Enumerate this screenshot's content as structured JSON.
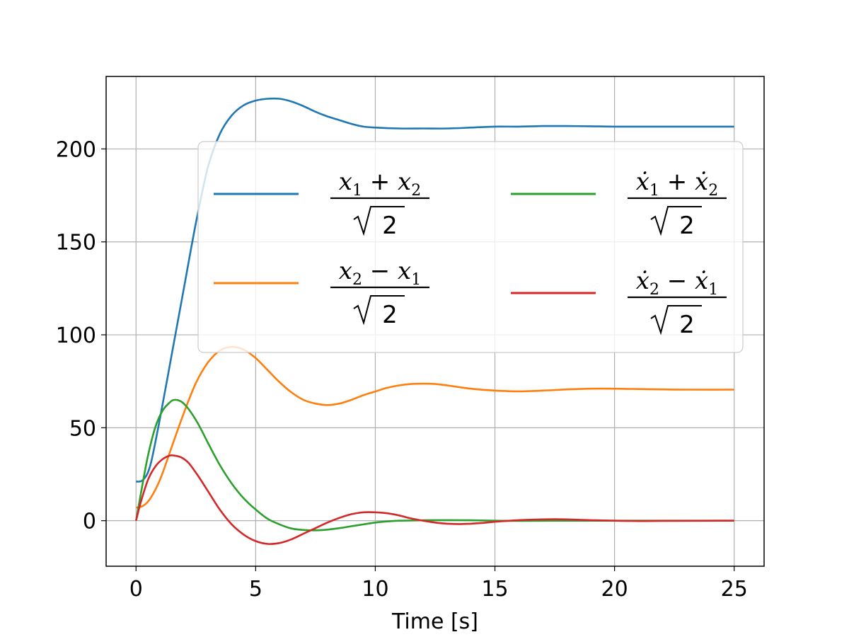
{
  "chart_data": {
    "type": "line",
    "title": "",
    "xlabel": "Time [s]",
    "ylabel": "",
    "xlim": [
      -1.25,
      26.25
    ],
    "ylim": [
      -24.5,
      239
    ],
    "xticks": [
      0,
      5,
      10,
      15,
      20,
      25
    ],
    "yticks": [
      0,
      50,
      100,
      150,
      200
    ],
    "grid": true,
    "legend_position": "upper center",
    "legend_columns": 2,
    "series": [
      {
        "name": "(x1 + x2)/√2",
        "color": "#1f77b4",
        "points": [
          [
            0,
            21
          ],
          [
            0.3,
            22
          ],
          [
            0.6,
            30
          ],
          [
            1.0,
            55
          ],
          [
            1.5,
            90
          ],
          [
            2.0,
            125
          ],
          [
            2.5,
            160
          ],
          [
            3.0,
            190
          ],
          [
            3.5,
            208
          ],
          [
            4.0,
            218
          ],
          [
            4.5,
            223.5
          ],
          [
            5.0,
            226
          ],
          [
            5.5,
            227
          ],
          [
            6.0,
            227
          ],
          [
            6.5,
            225.5
          ],
          [
            7.0,
            223
          ],
          [
            7.5,
            220
          ],
          [
            8.0,
            217.5
          ],
          [
            8.5,
            215.5
          ],
          [
            9.0,
            213.5
          ],
          [
            9.5,
            212
          ],
          [
            10.0,
            211.5
          ],
          [
            11.0,
            211
          ],
          [
            12.0,
            211
          ],
          [
            13.0,
            211
          ],
          [
            14.0,
            211.5
          ],
          [
            15.0,
            212
          ],
          [
            16.0,
            212
          ],
          [
            17.0,
            212.3
          ],
          [
            18.0,
            212.3
          ],
          [
            19.0,
            212.2
          ],
          [
            20.0,
            212
          ],
          [
            22.0,
            212
          ],
          [
            25.0,
            212
          ]
        ]
      },
      {
        "name": "(x2 − x1)/√2",
        "color": "#ff7f0e",
        "points": [
          [
            0,
            7
          ],
          [
            0.3,
            8
          ],
          [
            0.6,
            12
          ],
          [
            1.0,
            22
          ],
          [
            1.5,
            40
          ],
          [
            2.0,
            58
          ],
          [
            2.5,
            74
          ],
          [
            3.0,
            85
          ],
          [
            3.5,
            91.5
          ],
          [
            4.0,
            93.5
          ],
          [
            4.5,
            92
          ],
          [
            5.0,
            87.5
          ],
          [
            5.5,
            81
          ],
          [
            6.0,
            74.5
          ],
          [
            6.5,
            69
          ],
          [
            7.0,
            65
          ],
          [
            7.5,
            63
          ],
          [
            8.0,
            62.2
          ],
          [
            8.5,
            63
          ],
          [
            9.0,
            65
          ],
          [
            9.5,
            67.5
          ],
          [
            10.0,
            69.5
          ],
          [
            10.5,
            71.5
          ],
          [
            11.0,
            72.8
          ],
          [
            11.5,
            73.5
          ],
          [
            12.0,
            73.7
          ],
          [
            12.5,
            73.5
          ],
          [
            13.0,
            72.8
          ],
          [
            14.0,
            71
          ],
          [
            15.0,
            70
          ],
          [
            16.0,
            69.6
          ],
          [
            17.0,
            70
          ],
          [
            18.0,
            70.6
          ],
          [
            19.0,
            71
          ],
          [
            20.0,
            71
          ],
          [
            21.0,
            70.8
          ],
          [
            22.0,
            70.6
          ],
          [
            23.0,
            70.5
          ],
          [
            25.0,
            70.5
          ]
        ]
      },
      {
        "name": "(ẋ1 + ẋ2)/√2",
        "color": "#2ca02c",
        "points": [
          [
            0,
            0
          ],
          [
            0.25,
            18
          ],
          [
            0.5,
            35
          ],
          [
            0.8,
            50
          ],
          [
            1.1,
            59
          ],
          [
            1.4,
            63.5
          ],
          [
            1.6,
            65
          ],
          [
            1.9,
            64
          ],
          [
            2.2,
            60
          ],
          [
            2.6,
            52
          ],
          [
            3.0,
            42
          ],
          [
            3.5,
            30
          ],
          [
            4.0,
            20
          ],
          [
            4.5,
            12
          ],
          [
            5.0,
            6
          ],
          [
            5.5,
            1
          ],
          [
            6.0,
            -2
          ],
          [
            6.5,
            -4.2
          ],
          [
            7.0,
            -5
          ],
          [
            7.5,
            -5.2
          ],
          [
            8.0,
            -4.8
          ],
          [
            8.5,
            -4
          ],
          [
            9.0,
            -3
          ],
          [
            9.5,
            -2
          ],
          [
            10.0,
            -1
          ],
          [
            10.5,
            -0.4
          ],
          [
            11.0,
            0
          ],
          [
            12.0,
            0.2
          ],
          [
            13.0,
            0.3
          ],
          [
            14.0,
            0.2
          ],
          [
            15.0,
            0
          ],
          [
            16.0,
            -0.1
          ],
          [
            18.0,
            0
          ],
          [
            20.0,
            0
          ],
          [
            25.0,
            0
          ]
        ]
      },
      {
        "name": "(ẋ2 − ẋ1)/√2",
        "color": "#d62728",
        "points": [
          [
            0,
            0
          ],
          [
            0.2,
            10
          ],
          [
            0.5,
            22
          ],
          [
            0.8,
            29
          ],
          [
            1.1,
            33
          ],
          [
            1.4,
            35
          ],
          [
            1.6,
            35
          ],
          [
            1.9,
            34
          ],
          [
            2.2,
            31
          ],
          [
            2.6,
            24
          ],
          [
            3.0,
            16
          ],
          [
            3.5,
            6
          ],
          [
            4.0,
            -2
          ],
          [
            4.5,
            -7.5
          ],
          [
            5.0,
            -11
          ],
          [
            5.5,
            -12.5
          ],
          [
            6.0,
            -12
          ],
          [
            6.5,
            -10
          ],
          [
            7.0,
            -7
          ],
          [
            7.5,
            -4
          ],
          [
            8.0,
            -1
          ],
          [
            8.5,
            1.5
          ],
          [
            9.0,
            3.5
          ],
          [
            9.5,
            4.5
          ],
          [
            10.0,
            4.5
          ],
          [
            10.5,
            4
          ],
          [
            11.0,
            2.8
          ],
          [
            11.5,
            1.2
          ],
          [
            12.0,
            0
          ],
          [
            12.5,
            -1
          ],
          [
            13.0,
            -1.6
          ],
          [
            13.5,
            -1.8
          ],
          [
            14.0,
            -1.6
          ],
          [
            14.5,
            -1.2
          ],
          [
            15.0,
            -0.6
          ],
          [
            16.0,
            0.3
          ],
          [
            17.0,
            0.7
          ],
          [
            17.5,
            0.8
          ],
          [
            18.0,
            0.7
          ],
          [
            19.0,
            0.3
          ],
          [
            20.0,
            0
          ],
          [
            21.0,
            -0.2
          ],
          [
            22.0,
            -0.1
          ],
          [
            25.0,
            0
          ]
        ]
      }
    ]
  }
}
